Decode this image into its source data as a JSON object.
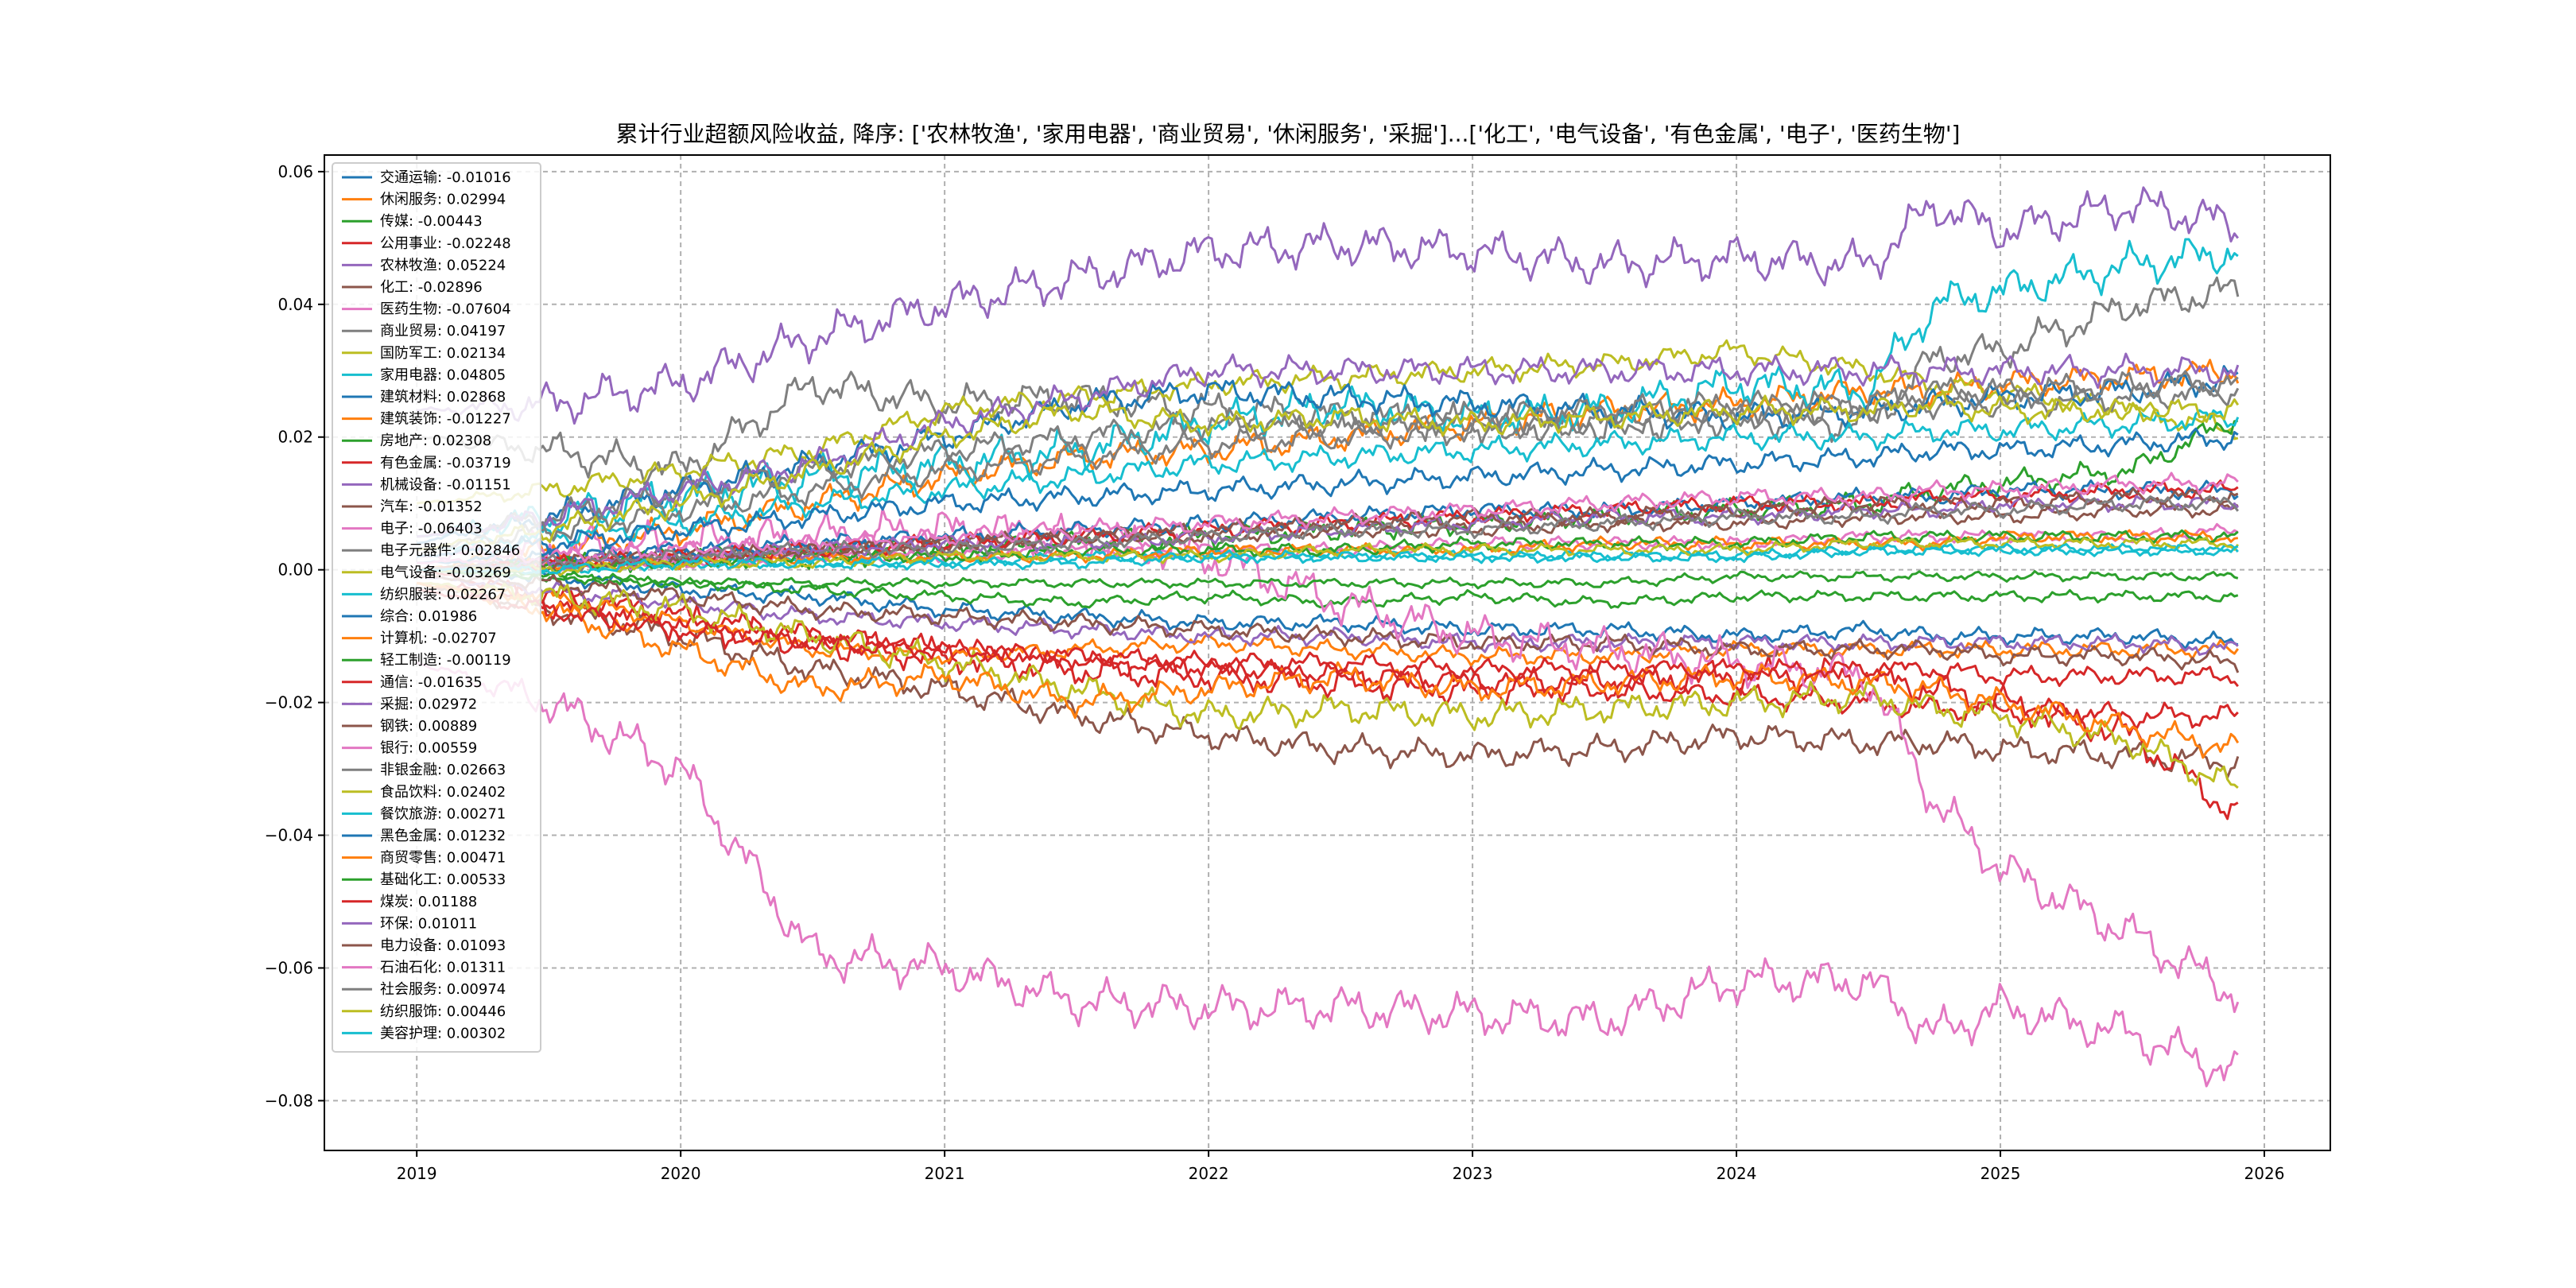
{
  "chart_data": {
    "type": "line",
    "title": "累计行业超额风险收益, 降序: ['农林牧渔', '家用电器', '商业贸易', '休闲服务', '采掘']...['化工', '电气设备', '有色金属', '电子', '医药生物']",
    "xlabel": "",
    "ylabel": "",
    "x_range": [
      "2018-08-20",
      "2025-12-31"
    ],
    "xlim": [
      2018.65,
      2026.25
    ],
    "ylim": [
      -0.0875,
      0.0625
    ],
    "x_ticks": [
      "2019",
      "2020",
      "2021",
      "2022",
      "2023",
      "2024",
      "2025",
      "2026"
    ],
    "y_ticks": [
      "0.06",
      "0.04",
      "0.02",
      "0.00",
      "−0.02",
      "−0.04",
      "−0.06",
      "−0.08"
    ],
    "grid": true,
    "legend_placement": "top-left",
    "x_anchors": [
      2019.0,
      2019.5,
      2020.0,
      2020.5,
      2021.0,
      2021.5,
      2022.0,
      2022.5,
      2023.0,
      2023.5,
      2024.0,
      2024.5,
      2024.75,
      2025.0,
      2025.5,
      2025.9
    ],
    "series": [
      {
        "name": "交通运输",
        "final": "-0.01016",
        "color": "#1f77b4",
        "values": [
          0.0,
          -0.001,
          -0.003,
          -0.004,
          -0.006,
          -0.007,
          -0.008,
          -0.008,
          -0.009,
          -0.009,
          -0.01,
          -0.009,
          -0.01,
          -0.01,
          -0.01,
          -0.011
        ]
      },
      {
        "name": "休闲服务",
        "final": "0.02994",
        "color": "#ff7f0e",
        "values": [
          0.0,
          0.003,
          0.006,
          0.01,
          0.014,
          0.017,
          0.018,
          0.02,
          0.022,
          0.024,
          0.025,
          0.027,
          0.027,
          0.028,
          0.029,
          0.03
        ]
      },
      {
        "name": "传媒",
        "final": "-0.00443",
        "color": "#2ca02c",
        "values": [
          0.0,
          -0.001,
          -0.002,
          -0.003,
          -0.004,
          -0.005,
          -0.004,
          -0.005,
          -0.004,
          -0.005,
          -0.004,
          -0.004,
          -0.004,
          -0.004,
          -0.004,
          -0.004
        ]
      },
      {
        "name": "公用事业",
        "final": "-0.02248",
        "color": "#d62728",
        "values": [
          0.0,
          -0.004,
          -0.007,
          -0.01,
          -0.012,
          -0.014,
          -0.015,
          -0.016,
          -0.017,
          -0.018,
          -0.019,
          -0.02,
          -0.021,
          -0.021,
          -0.022,
          -0.022
        ]
      },
      {
        "name": "农林牧渔",
        "final": "0.05224",
        "color": "#9467bd",
        "values": [
          0.024,
          0.025,
          0.028,
          0.035,
          0.04,
          0.044,
          0.048,
          0.049,
          0.048,
          0.046,
          0.047,
          0.046,
          0.055,
          0.051,
          0.055,
          0.052
        ]
      },
      {
        "name": "化工",
        "final": "-0.02896",
        "color": "#8c564b",
        "values": [
          -0.002,
          -0.006,
          -0.01,
          -0.015,
          -0.018,
          -0.022,
          -0.025,
          -0.027,
          -0.028,
          -0.027,
          -0.025,
          -0.026,
          -0.026,
          -0.027,
          -0.028,
          -0.029
        ]
      },
      {
        "name": "医药生物",
        "final": "-0.07604",
        "color": "#e377c2",
        "values": [
          -0.014,
          -0.02,
          -0.03,
          -0.058,
          -0.06,
          -0.065,
          -0.066,
          -0.066,
          -0.067,
          -0.068,
          -0.062,
          -0.062,
          -0.07,
          -0.066,
          -0.07,
          -0.076
        ]
      },
      {
        "name": "商业贸易",
        "final": "0.04197",
        "color": "#7f7f7f",
        "values": [
          0.02,
          0.018,
          0.015,
          0.028,
          0.025,
          0.026,
          0.024,
          0.023,
          0.022,
          0.022,
          0.023,
          0.022,
          0.032,
          0.033,
          0.04,
          0.042
        ]
      },
      {
        "name": "国防军工",
        "final": "0.02134",
        "color": "#bcbd22",
        "values": [
          0.01,
          0.012,
          0.015,
          0.018,
          0.024,
          0.026,
          0.028,
          0.029,
          0.03,
          0.031,
          0.033,
          0.03,
          0.028,
          0.027,
          0.024,
          0.021
        ]
      },
      {
        "name": "家用电器",
        "final": "0.04805",
        "color": "#17becf",
        "values": [
          0.005,
          0.008,
          0.011,
          0.014,
          0.016,
          0.018,
          0.022,
          0.025,
          0.023,
          0.024,
          0.028,
          0.027,
          0.04,
          0.042,
          0.046,
          0.048
        ]
      },
      {
        "name": "建筑材料",
        "final": "0.02868",
        "color": "#1f77b4",
        "values": [
          0.004,
          0.008,
          0.012,
          0.016,
          0.02,
          0.025,
          0.027,
          0.026,
          0.025,
          0.024,
          0.023,
          0.024,
          0.025,
          0.026,
          0.027,
          0.029
        ]
      },
      {
        "name": "建筑装饰",
        "final": "-0.01227",
        "color": "#ff7f0e",
        "values": [
          -0.002,
          -0.004,
          -0.008,
          -0.012,
          -0.013,
          -0.012,
          -0.011,
          -0.012,
          -0.013,
          -0.013,
          -0.012,
          -0.012,
          -0.012,
          -0.012,
          -0.012,
          -0.012
        ]
      },
      {
        "name": "房地产",
        "final": "0.02308",
        "color": "#2ca02c",
        "values": [
          0.0,
          0.001,
          0.002,
          0.002,
          0.003,
          0.004,
          0.005,
          0.006,
          0.007,
          0.008,
          0.009,
          0.01,
          0.012,
          0.013,
          0.015,
          0.023
        ]
      },
      {
        "name": "有色金属",
        "final": "-0.03719",
        "color": "#d62728",
        "values": [
          -0.002,
          -0.005,
          -0.008,
          -0.011,
          -0.013,
          -0.015,
          -0.016,
          -0.017,
          -0.018,
          -0.017,
          -0.016,
          -0.016,
          -0.018,
          -0.02,
          -0.025,
          -0.037
        ]
      },
      {
        "name": "机械设备",
        "final": "-0.01151",
        "color": "#9467bd",
        "values": [
          -0.001,
          -0.003,
          -0.005,
          -0.007,
          -0.008,
          -0.009,
          -0.01,
          -0.01,
          -0.011,
          -0.011,
          -0.011,
          -0.011,
          -0.011,
          -0.011,
          -0.011,
          -0.012
        ]
      },
      {
        "name": "汽车",
        "final": "-0.01352",
        "color": "#8c564b",
        "values": [
          -0.001,
          -0.002,
          -0.004,
          -0.006,
          -0.007,
          -0.008,
          -0.009,
          -0.01,
          -0.011,
          -0.011,
          -0.012,
          -0.012,
          -0.012,
          -0.013,
          -0.013,
          -0.014
        ]
      },
      {
        "name": "电子",
        "final": "-0.06403",
        "color": "#e377c2",
        "values": [
          0.002,
          0.003,
          0.004,
          0.005,
          0.006,
          0.005,
          0.002,
          -0.005,
          -0.01,
          -0.012,
          -0.014,
          -0.016,
          -0.035,
          -0.045,
          -0.055,
          -0.064
        ]
      },
      {
        "name": "电子元器件",
        "final": "0.02846",
        "color": "#7f7f7f",
        "values": [
          0.005,
          0.008,
          0.012,
          0.015,
          0.018,
          0.02,
          0.022,
          0.022,
          0.023,
          0.024,
          0.025,
          0.025,
          0.027,
          0.027,
          0.028,
          0.028
        ]
      },
      {
        "name": "电气设备",
        "final": "-0.03269",
        "color": "#bcbd22",
        "values": [
          -0.002,
          -0.004,
          -0.006,
          -0.01,
          -0.014,
          -0.018,
          -0.022,
          -0.021,
          -0.022,
          -0.021,
          -0.02,
          -0.019,
          -0.021,
          -0.022,
          -0.026,
          -0.033
        ]
      },
      {
        "name": "纺织服装",
        "final": "0.02267",
        "color": "#17becf",
        "values": [
          0.003,
          0.005,
          0.007,
          0.01,
          0.012,
          0.014,
          0.016,
          0.017,
          0.018,
          0.019,
          0.02,
          0.02,
          0.021,
          0.021,
          0.022,
          0.023
        ]
      },
      {
        "name": "综合",
        "final": "0.01986",
        "color": "#1f77b4",
        "values": [
          0.002,
          0.004,
          0.006,
          0.008,
          0.01,
          0.011,
          0.012,
          0.013,
          0.014,
          0.015,
          0.016,
          0.017,
          0.018,
          0.018,
          0.019,
          0.02
        ]
      },
      {
        "name": "计算机",
        "final": "-0.02707",
        "color": "#ff7f0e",
        "values": [
          -0.002,
          -0.006,
          -0.012,
          -0.018,
          -0.016,
          -0.02,
          -0.018,
          -0.016,
          -0.018,
          -0.017,
          -0.016,
          -0.017,
          -0.018,
          -0.02,
          -0.024,
          -0.027
        ]
      },
      {
        "name": "轻工制造",
        "final": "-0.00119",
        "color": "#2ca02c",
        "values": [
          0.0,
          -0.001,
          -0.002,
          -0.002,
          -0.002,
          -0.002,
          -0.002,
          -0.002,
          -0.002,
          -0.002,
          -0.001,
          -0.001,
          -0.001,
          -0.001,
          -0.001,
          -0.001
        ]
      },
      {
        "name": "通信",
        "final": "-0.01635",
        "color": "#d62728",
        "values": [
          -0.003,
          -0.006,
          -0.009,
          -0.011,
          -0.012,
          -0.013,
          -0.014,
          -0.014,
          -0.015,
          -0.015,
          -0.015,
          -0.015,
          -0.015,
          -0.016,
          -0.016,
          -0.016
        ]
      },
      {
        "name": "采掘",
        "final": "0.02972",
        "color": "#9467bd",
        "values": [
          0.005,
          0.008,
          0.012,
          0.016,
          0.022,
          0.026,
          0.03,
          0.03,
          0.03,
          0.03,
          0.03,
          0.03,
          0.03,
          0.03,
          0.03,
          0.03
        ]
      },
      {
        "name": "钢铁",
        "final": "0.00889",
        "color": "#8c564b",
        "values": [
          0.0,
          0.001,
          0.002,
          0.003,
          0.004,
          0.005,
          0.005,
          0.006,
          0.006,
          0.007,
          0.007,
          0.008,
          0.008,
          0.008,
          0.009,
          0.009
        ]
      },
      {
        "name": "银行",
        "final": "0.00559",
        "color": "#e377c2",
        "values": [
          0.0,
          0.001,
          0.001,
          0.002,
          0.002,
          0.003,
          0.003,
          0.003,
          0.004,
          0.004,
          0.004,
          0.005,
          0.005,
          0.005,
          0.005,
          0.006
        ]
      },
      {
        "name": "非银金融",
        "final": "0.02663",
        "color": "#7f7f7f",
        "values": [
          0.003,
          0.006,
          0.009,
          0.012,
          0.015,
          0.017,
          0.019,
          0.02,
          0.021,
          0.022,
          0.023,
          0.024,
          0.025,
          0.025,
          0.026,
          0.027
        ]
      },
      {
        "name": "食品饮料",
        "final": "0.02402",
        "color": "#bcbd22",
        "values": [
          0.003,
          0.006,
          0.01,
          0.015,
          0.02,
          0.024,
          0.022,
          0.023,
          0.022,
          0.023,
          0.024,
          0.024,
          0.025,
          0.024,
          0.024,
          0.024
        ]
      },
      {
        "name": "餐饮旅游",
        "final": "0.00271",
        "color": "#17becf",
        "values": [
          0.0,
          0.0,
          0.001,
          0.001,
          0.001,
          0.002,
          0.002,
          0.002,
          0.002,
          0.002,
          0.002,
          0.003,
          0.003,
          0.003,
          0.003,
          0.003
        ]
      },
      {
        "name": "黑色金属",
        "final": "0.01232",
        "color": "#1f77b4",
        "values": [
          0.001,
          0.002,
          0.003,
          0.004,
          0.005,
          0.006,
          0.007,
          0.008,
          0.009,
          0.009,
          0.01,
          0.011,
          0.011,
          0.012,
          0.012,
          0.012
        ]
      },
      {
        "name": "商贸零售",
        "final": "0.00471",
        "color": "#ff7f0e",
        "values": [
          0.0,
          0.001,
          0.001,
          0.002,
          0.002,
          0.002,
          0.003,
          0.003,
          0.003,
          0.004,
          0.004,
          0.004,
          0.004,
          0.005,
          0.005,
          0.005
        ]
      },
      {
        "name": "基础化工",
        "final": "0.00533",
        "color": "#2ca02c",
        "values": [
          0.0,
          0.001,
          0.001,
          0.002,
          0.002,
          0.003,
          0.003,
          0.003,
          0.004,
          0.004,
          0.004,
          0.005,
          0.005,
          0.005,
          0.005,
          0.005
        ]
      },
      {
        "name": "煤炭",
        "final": "0.01188",
        "color": "#d62728",
        "values": [
          0.0,
          0.001,
          0.002,
          0.003,
          0.004,
          0.005,
          0.006,
          0.007,
          0.008,
          0.009,
          0.01,
          0.01,
          0.011,
          0.011,
          0.012,
          0.012
        ]
      },
      {
        "name": "环保",
        "final": "0.01011",
        "color": "#9467bd",
        "values": [
          0.0,
          0.001,
          0.002,
          0.003,
          0.004,
          0.004,
          0.005,
          0.006,
          0.007,
          0.008,
          0.008,
          0.009,
          0.009,
          0.01,
          0.01,
          0.01
        ]
      },
      {
        "name": "电力设备",
        "final": "0.01093",
        "color": "#8c564b",
        "values": [
          0.0,
          0.001,
          0.002,
          0.003,
          0.004,
          0.005,
          0.006,
          0.007,
          0.008,
          0.008,
          0.009,
          0.01,
          0.01,
          0.01,
          0.011,
          0.011
        ]
      },
      {
        "name": "石油石化",
        "final": "0.01311",
        "color": "#e377c2",
        "values": [
          0.001,
          0.002,
          0.003,
          0.004,
          0.005,
          0.006,
          0.007,
          0.008,
          0.009,
          0.01,
          0.011,
          0.011,
          0.012,
          0.012,
          0.013,
          0.013
        ]
      },
      {
        "name": "社会服务",
        "final": "0.00974",
        "color": "#7f7f7f",
        "values": [
          0.0,
          0.001,
          0.002,
          0.003,
          0.003,
          0.004,
          0.005,
          0.006,
          0.006,
          0.007,
          0.008,
          0.008,
          0.009,
          0.009,
          0.01,
          0.01
        ]
      },
      {
        "name": "纺织服饰",
        "final": "0.00446",
        "color": "#bcbd22",
        "values": [
          0.0,
          0.0,
          0.001,
          0.001,
          0.002,
          0.002,
          0.002,
          0.003,
          0.003,
          0.003,
          0.003,
          0.004,
          0.004,
          0.004,
          0.004,
          0.004
        ]
      },
      {
        "name": "美容护理",
        "final": "0.00302",
        "color": "#17becf",
        "values": [
          0.0,
          0.0,
          0.001,
          0.001,
          0.001,
          0.001,
          0.002,
          0.002,
          0.002,
          0.002,
          0.002,
          0.003,
          0.003,
          0.003,
          0.003,
          0.003
        ]
      }
    ]
  }
}
